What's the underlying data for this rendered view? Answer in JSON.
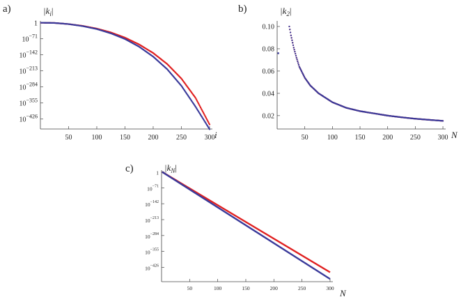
{
  "chart_data": [
    {
      "type": "scatter",
      "panel_label": "a)",
      "ylabel": "|k_i|",
      "xlabel": "i",
      "x_ticks": [
        50,
        100,
        150,
        200,
        250,
        300
      ],
      "y_ticks": [
        {
          "base": "1",
          "exp": ""
        },
        {
          "base": "10",
          "exp": "−71"
        },
        {
          "base": "10",
          "exp": "−142"
        },
        {
          "base": "10",
          "exp": "−213"
        },
        {
          "base": "10",
          "exp": "−284"
        },
        {
          "base": "10",
          "exp": "−355"
        },
        {
          "base": "10",
          "exp": "−426"
        }
      ],
      "xlim": [
        0,
        305
      ],
      "ylim_log10": [
        -470,
        8
      ],
      "log_y": true,
      "series": [
        {
          "color": "#e02020",
          "points_log10": [
            [
              1,
              0
            ],
            [
              25,
              -1
            ],
            [
              50,
              -6
            ],
            [
              75,
              -14
            ],
            [
              100,
              -26
            ],
            [
              125,
              -43
            ],
            [
              150,
              -66
            ],
            [
              175,
              -96
            ],
            [
              200,
              -134
            ],
            [
              225,
              -183
            ],
            [
              250,
              -247
            ],
            [
              275,
              -332
            ],
            [
              300,
              -450
            ]
          ]
        },
        {
          "color": "#3a3a9a",
          "points_log10": [
            [
              1,
              0
            ],
            [
              25,
              -1
            ],
            [
              50,
              -6
            ],
            [
              75,
              -15
            ],
            [
              100,
              -28
            ],
            [
              125,
              -47
            ],
            [
              150,
              -72
            ],
            [
              175,
              -106
            ],
            [
              200,
              -150
            ],
            [
              225,
              -206
            ],
            [
              250,
              -279
            ],
            [
              275,
              -371
            ],
            [
              300,
              -471
            ]
          ]
        }
      ]
    },
    {
      "type": "scatter",
      "panel_label": "b)",
      "ylabel": "|k_2|",
      "xlabel": "N",
      "x_ticks": [
        50,
        100,
        150,
        200,
        250,
        300
      ],
      "y_ticks": [
        "0.02",
        "0.04",
        "0.06",
        "0.08",
        "0.10"
      ],
      "xlim": [
        0,
        305
      ],
      "ylim": [
        0.008,
        0.105
      ],
      "outlier": {
        "x": 2,
        "y": 0.076
      },
      "series": [
        {
          "color": "#e02020",
          "points": [
            [
              22,
              0.1
            ],
            [
              25,
              0.092
            ],
            [
              30,
              0.081
            ],
            [
              35,
              0.072
            ],
            [
              40,
              0.064
            ],
            [
              50,
              0.054
            ],
            [
              60,
              0.047
            ],
            [
              75,
              0.04
            ],
            [
              100,
              0.032
            ],
            [
              125,
              0.027
            ],
            [
              150,
              0.024
            ],
            [
              175,
              0.022
            ],
            [
              200,
              0.02
            ],
            [
              225,
              0.0185
            ],
            [
              250,
              0.0172
            ],
            [
              275,
              0.0162
            ],
            [
              300,
              0.0153
            ]
          ]
        },
        {
          "color": "#3a3a9a",
          "points": [
            [
              22,
              0.1
            ],
            [
              25,
              0.092
            ],
            [
              30,
              0.081
            ],
            [
              35,
              0.072
            ],
            [
              40,
              0.064
            ],
            [
              50,
              0.054
            ],
            [
              60,
              0.047
            ],
            [
              75,
              0.04
            ],
            [
              100,
              0.032
            ],
            [
              125,
              0.027
            ],
            [
              150,
              0.024
            ],
            [
              175,
              0.022
            ],
            [
              200,
              0.02
            ],
            [
              225,
              0.0185
            ],
            [
              250,
              0.0172
            ],
            [
              275,
              0.0162
            ],
            [
              300,
              0.0153
            ]
          ]
        }
      ]
    },
    {
      "type": "line",
      "panel_label": "c)",
      "ylabel": "|k_N|",
      "xlabel": "N",
      "x_ticks": [
        50,
        100,
        150,
        200,
        250,
        300
      ],
      "y_ticks": [
        {
          "base": "1",
          "exp": ""
        },
        {
          "base": "10",
          "exp": "−71"
        },
        {
          "base": "10",
          "exp": "−142"
        },
        {
          "base": "10",
          "exp": "−213"
        },
        {
          "base": "10",
          "exp": "−284"
        },
        {
          "base": "10",
          "exp": "−355"
        },
        {
          "base": "10",
          "exp": "−426"
        }
      ],
      "xlim": [
        0,
        305
      ],
      "ylim_log10": [
        -490,
        8
      ],
      "log_y": true,
      "series": [
        {
          "color": "#e02020",
          "points_log10": [
            [
              1,
              0
            ],
            [
              300,
              -448
            ]
          ]
        },
        {
          "color": "#3a3a9a",
          "points_log10": [
            [
              1,
              0
            ],
            [
              300,
              -478
            ]
          ]
        }
      ]
    }
  ]
}
